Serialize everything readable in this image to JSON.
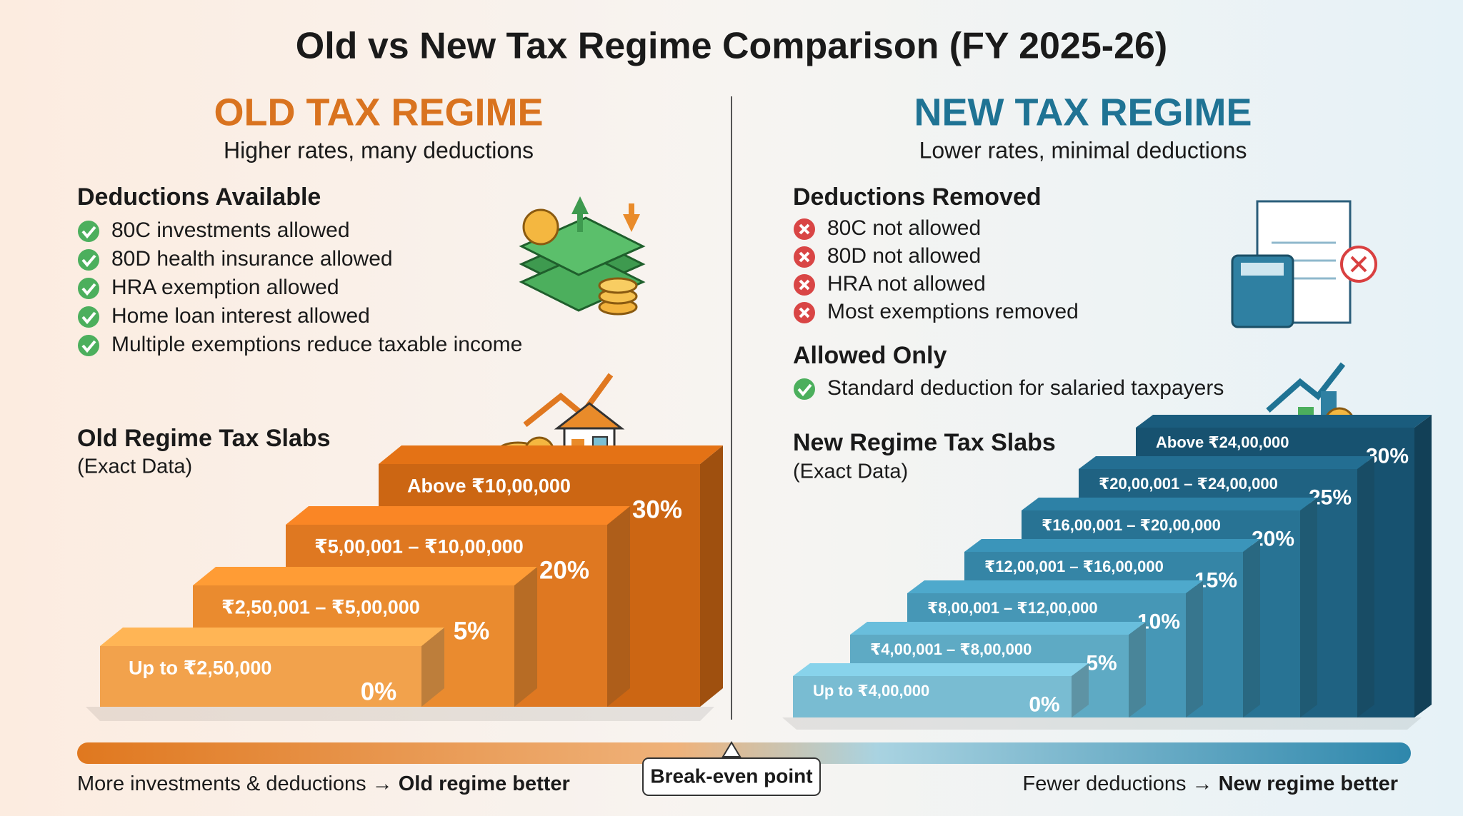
{
  "title": "Old vs New Tax Regime Comparison (FY 2025-26)",
  "old_regime": {
    "heading": "OLD TAX REGIME",
    "subtitle": "Higher rates, many deductions",
    "deductions_title": "Deductions Available",
    "deductions": [
      "80C investments allowed",
      "80D health insurance allowed",
      "HRA exemption allowed",
      "Home loan interest allowed",
      "Multiple exemptions reduce taxable income"
    ],
    "slabs_title": "Old Regime Tax Slabs",
    "slabs_note": "(Exact Data)",
    "slabs": [
      {
        "range": "Up to ₹2,50,000",
        "rate": "0%"
      },
      {
        "range": "₹2,50,001 – ₹5,00,000",
        "rate": "5%"
      },
      {
        "range": "₹5,00,001 – ₹10,00,000",
        "rate": "20%"
      },
      {
        "range": "Above ₹10,00,000",
        "rate": "30%"
      }
    ]
  },
  "new_regime": {
    "heading": "NEW TAX REGIME",
    "subtitle": "Lower rates, minimal deductions",
    "removed_title": "Deductions Removed",
    "removed": [
      "80C not allowed",
      "80D not allowed",
      "HRA not allowed",
      "Most exemptions removed"
    ],
    "allowed_title": "Allowed Only",
    "allowed": [
      "Standard deduction for salaried taxpayers"
    ],
    "slabs_title": "New Regime Tax Slabs",
    "slabs_note": "(Exact Data)",
    "slabs": [
      {
        "range": "Up to ₹4,00,000",
        "rate": "0%"
      },
      {
        "range": "₹4,00,001 – ₹8,00,000",
        "rate": "5%"
      },
      {
        "range": "₹8,00,001 – ₹12,00,000",
        "rate": "10%"
      },
      {
        "range": "₹12,00,001 – ₹16,00,000",
        "rate": "15%"
      },
      {
        "range": "₹16,00,001 – ₹20,00,000",
        "rate": "20%"
      },
      {
        "range": "₹20,00,001 – ₹24,00,000",
        "rate": "25%"
      },
      {
        "range": "Above ₹24,00,000",
        "rate": "30%"
      }
    ]
  },
  "footer": {
    "left_text": "More investments & deductions →",
    "left_emphasis": "Old regime better",
    "center": "Break-even point",
    "right_text": "Fewer deductions →",
    "right_emphasis": "New regime better"
  }
}
